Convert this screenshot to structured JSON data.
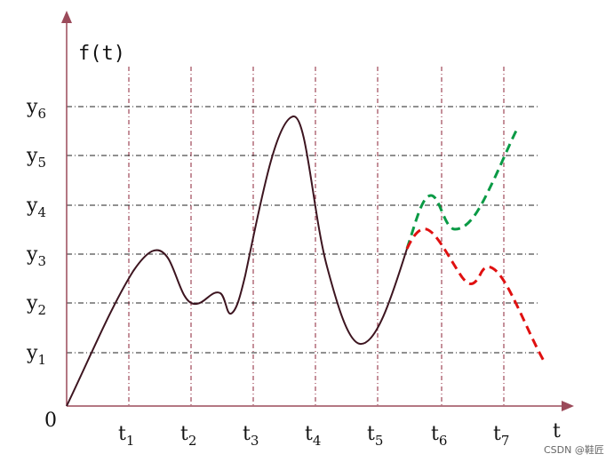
{
  "axes": {
    "y_label": "f(t)",
    "x_label": "t",
    "origin": "0"
  },
  "x_ticks": [
    {
      "symbol": "t",
      "sub": "1"
    },
    {
      "symbol": "t",
      "sub": "2"
    },
    {
      "symbol": "t",
      "sub": "3"
    },
    {
      "symbol": "t",
      "sub": "4"
    },
    {
      "symbol": "t",
      "sub": "5"
    },
    {
      "symbol": "t",
      "sub": "6"
    },
    {
      "symbol": "t",
      "sub": "7"
    }
  ],
  "y_ticks": [
    {
      "symbol": "y",
      "sub": "1"
    },
    {
      "symbol": "y",
      "sub": "2"
    },
    {
      "symbol": "y",
      "sub": "3"
    },
    {
      "symbol": "y",
      "sub": "4"
    },
    {
      "symbol": "y",
      "sub": "5"
    },
    {
      "symbol": "y",
      "sub": "6"
    }
  ],
  "watermark": "CSDN @鞋匠"
}
